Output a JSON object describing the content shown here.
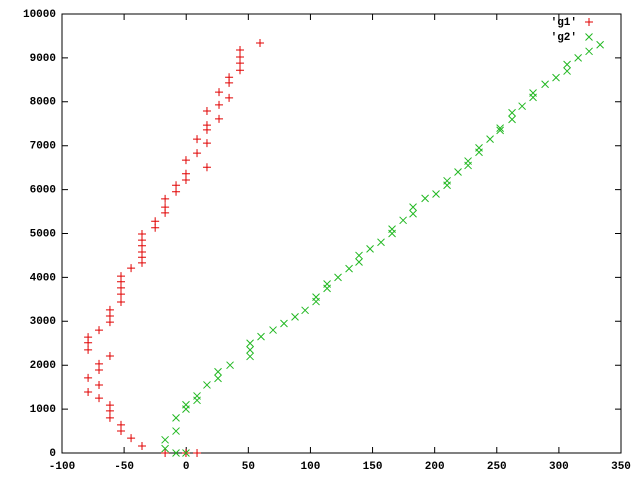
{
  "chart_data": {
    "type": "scatter",
    "xlim": [
      -100,
      350
    ],
    "xticks": [
      -100,
      -50,
      0,
      50,
      100,
      150,
      200,
      250,
      300,
      350
    ],
    "ylim": [
      0,
      10000
    ],
    "yticks": [
      0,
      1000,
      2000,
      3000,
      4000,
      5000,
      6000,
      7000,
      8000,
      9000,
      10000
    ],
    "grid": false,
    "legend": "top-right",
    "series": [
      {
        "name": "'g1'",
        "color": "#e00000",
        "x": [
          59.4,
          43.3,
          43.3,
          43.3,
          43.3,
          34.5,
          34.5,
          34.5,
          26.4,
          26.4,
          26.4,
          16.7,
          16.7,
          16.7,
          16.7,
          16.7,
          8.7,
          8.7,
          -0.2,
          -0.2,
          -0.2,
          -8.2,
          -8.2,
          -17,
          -17,
          -17,
          -25,
          -25,
          -35.6,
          -35.6,
          -35.6,
          -35.6,
          -35.6,
          -35.6,
          -44.4,
          -52.5,
          -52.5,
          -52.5,
          -52.5,
          -52.5,
          -61.4,
          -61.4,
          -61.4,
          -70.2,
          -79,
          -79,
          -79,
          -61.4,
          -70.2,
          -70.2,
          -79,
          -70.2,
          -79,
          -70.2,
          -61.4,
          -61.4,
          -61.4,
          -52.5,
          -52.5,
          -44.4,
          -35.6,
          -17,
          -0.2,
          8.7
        ],
        "values": [
          9340,
          9180,
          9020,
          8880,
          8720,
          8560,
          8430,
          8090,
          8220,
          7930,
          7610,
          7790,
          7470,
          7360,
          7060,
          6510,
          7150,
          6830,
          6670,
          6360,
          6220,
          6100,
          5950,
          5790,
          5600,
          5470,
          5280,
          5130,
          4990,
          4850,
          4720,
          4580,
          4460,
          4330,
          4210,
          4030,
          3900,
          3760,
          3620,
          3440,
          3260,
          3120,
          2980,
          2800,
          2640,
          2510,
          2350,
          2210,
          2030,
          1890,
          1710,
          1550,
          1390,
          1250,
          1090,
          960,
          800,
          640,
          500,
          340,
          160,
          0,
          0,
          0
        ]
      },
      {
        "name": "'g2'",
        "color": "#22b822",
        "x": [
          -17,
          -17,
          -8.2,
          -8.2,
          -8.2,
          -0.2,
          -0.2,
          -0.2,
          8.7,
          8.7,
          16.7,
          25.6,
          25.6,
          35.3,
          51.4,
          51.4,
          51.4,
          60.2,
          69.9,
          78.7,
          87.6,
          95.7,
          104.5,
          104.5,
          113.4,
          113.4,
          122.2,
          131.1,
          139.1,
          139.1,
          148,
          156.8,
          165.7,
          165.7,
          174.6,
          182.6,
          182.6,
          192.3,
          201.1,
          210,
          210,
          218.8,
          226.9,
          226.9,
          235.7,
          235.7,
          244.6,
          252.7,
          252.7,
          262.3,
          262.3,
          270.4,
          279.2,
          279.2,
          288.9,
          297.7,
          306.6,
          306.6,
          315.5,
          324.3,
          333.2
        ],
        "values": [
          300,
          100,
          800,
          500,
          0,
          1000,
          1100,
          0,
          1300,
          1200,
          1550,
          1700,
          1850,
          2000,
          2200,
          2350,
          2500,
          2650,
          2800,
          2950,
          3100,
          3250,
          3450,
          3550,
          3750,
          3850,
          4000,
          4200,
          4350,
          4500,
          4650,
          4800,
          5000,
          5100,
          5300,
          5450,
          5600,
          5800,
          5900,
          6100,
          6200,
          6400,
          6550,
          6650,
          6850,
          6950,
          7150,
          7350,
          7400,
          7600,
          7750,
          7900,
          8100,
          8200,
          8400,
          8550,
          8700,
          8850,
          9000,
          9150,
          9300
        ]
      }
    ]
  }
}
